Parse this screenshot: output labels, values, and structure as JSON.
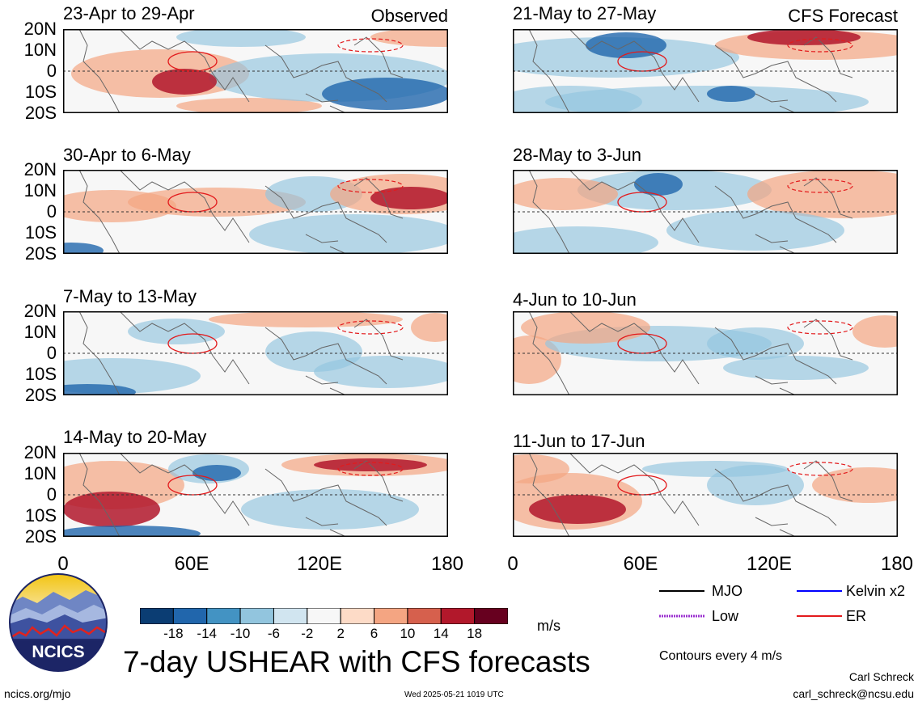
{
  "chart_data": {
    "type": "heatmap",
    "title": "7-day USHEAR with CFS forecasts",
    "x_ticks": [
      "0",
      "60E",
      "120E",
      "180"
    ],
    "x_range_deg": [
      0,
      180
    ],
    "y_ticks": [
      "20N",
      "10N",
      "0",
      "10S",
      "20S"
    ],
    "y_range_deg": [
      -20,
      20
    ],
    "column_labels": [
      "Observed",
      "CFS Forecast"
    ],
    "panels_observed": [
      {
        "label": "23-Apr to 29-Apr"
      },
      {
        "label": "30-Apr to 6-May"
      },
      {
        "label": "7-May to 13-May"
      },
      {
        "label": "14-May to 20-May"
      }
    ],
    "panels_forecast": [
      {
        "label": "21-May to 27-May"
      },
      {
        "label": "28-May to 3-Jun"
      },
      {
        "label": "4-Jun to 10-Jun"
      },
      {
        "label": "11-Jun to 17-Jun"
      }
    ],
    "colorbar": {
      "labels": [
        "-18",
        "-14",
        "-10",
        "-6",
        "-2",
        "2",
        "6",
        "10",
        "14",
        "18"
      ],
      "colors": [
        "#0b3d73",
        "#2166ac",
        "#4393c3",
        "#92c5de",
        "#d1e5f0",
        "#f7f7f7",
        "#fddbc7",
        "#f4a582",
        "#d6604d",
        "#b2182b",
        "#67001f"
      ],
      "unit": "m/s"
    },
    "legend": [
      {
        "label": "MJO",
        "color": "#000000",
        "style": "solid"
      },
      {
        "label": "Kelvin x2",
        "color": "#0000ff",
        "style": "solid"
      },
      {
        "label": "Low",
        "color": "#9b30d0",
        "style": "dotted"
      },
      {
        "label": "ER",
        "color": "#e31a1c",
        "style": "solid"
      }
    ],
    "contour_note": "Contours every 4 m/s"
  },
  "footer": {
    "logo_text": "NCICS",
    "website": "ncics.org/mjo",
    "timestamp": "Wed 2025-05-21 1019 UTC",
    "author": "Carl Schreck",
    "email": "carl_schreck@ncsu.edu"
  },
  "colors": {
    "neg_strong": "#2166ac",
    "neg_weak": "#92c5de",
    "pos_weak": "#f4a582",
    "pos_strong": "#b2182b",
    "er_contour": "#e31a1c",
    "coast": "#666666"
  }
}
